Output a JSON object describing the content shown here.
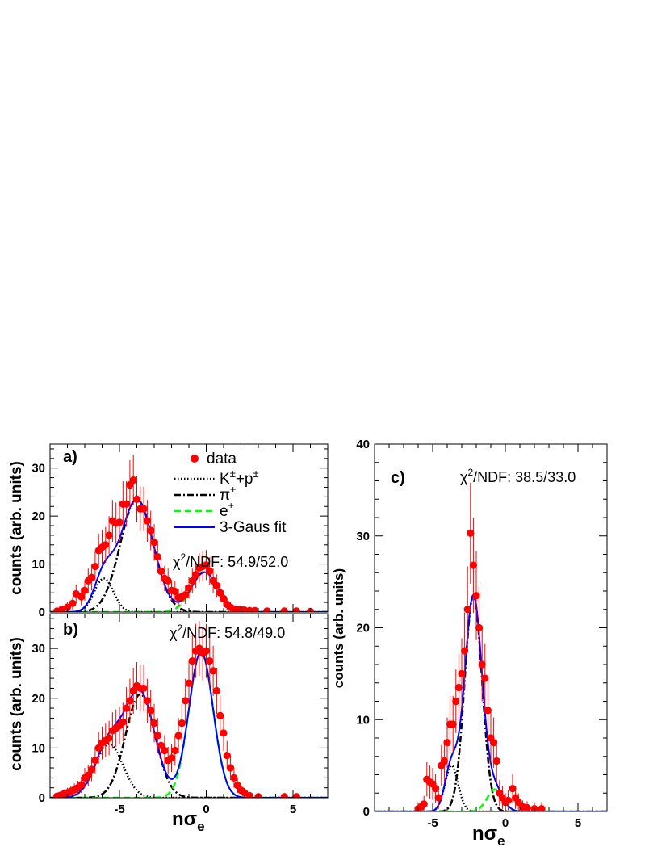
{
  "colors": {
    "data": "#ff0000",
    "fit": "#0000ff",
    "kp": "#000000",
    "pi": "#000000",
    "e": "#00ff00"
  },
  "legend": {
    "data": "data",
    "kp_base1": "K",
    "kp_sup1": "±",
    "kp_mid": "+p",
    "kp_sup2": "±",
    "pi_base": "π",
    "pi_sup": "±",
    "e_base": "e",
    "e_sup": "±",
    "fit": "3-Gaus fit"
  },
  "xlabel": {
    "n": "n",
    "sigma": "σ",
    "sub": "e"
  },
  "chart_data": [
    {
      "id": "a",
      "type": "scatter",
      "panel_label": "a)",
      "ylabel": "counts (arb. units)",
      "chi2": {
        "chi": "χ",
        "sup": "2",
        "text": "/NDF: 54.9/52.0"
      },
      "xlim": [
        -9,
        7
      ],
      "ylim": [
        0,
        35
      ],
      "xticks": [
        -5,
        0,
        5
      ],
      "yticks": [
        0,
        10,
        20,
        30
      ],
      "xtick_labels": [],
      "ytick_labels": [
        "0",
        "10",
        "20",
        "30"
      ],
      "components": [
        {
          "name": "kp",
          "A": 7.0,
          "mu": -5.9,
          "sigma": 0.55
        },
        {
          "name": "pi",
          "A": 23.5,
          "mu": -4.0,
          "sigma": 0.95
        },
        {
          "name": "e",
          "A": 8.3,
          "mu": -0.1,
          "sigma": 0.75
        }
      ],
      "points": [
        [
          -8.6,
          0.2
        ],
        [
          -8.3,
          0.6
        ],
        [
          -8.0,
          1.0
        ],
        [
          -7.7,
          1.8
        ],
        [
          -7.5,
          3.8
        ],
        [
          -7.2,
          3.2
        ],
        [
          -7.0,
          4.5
        ],
        [
          -6.8,
          6.5
        ],
        [
          -6.6,
          7.2
        ],
        [
          -6.4,
          9.5
        ],
        [
          -6.2,
          12.8
        ],
        [
          -6.0,
          13.5
        ],
        [
          -5.8,
          14.0
        ],
        [
          -5.6,
          16.0
        ],
        [
          -5.4,
          19.0
        ],
        [
          -5.2,
          18.5
        ],
        [
          -5.0,
          18.7
        ],
        [
          -4.8,
          22.5
        ],
        [
          -4.6,
          22.5
        ],
        [
          -4.4,
          26.5
        ],
        [
          -4.2,
          27.5
        ],
        [
          -4.0,
          23.5
        ],
        [
          -3.8,
          21.5
        ],
        [
          -3.6,
          21.5
        ],
        [
          -3.4,
          19.0
        ],
        [
          -3.2,
          17.0
        ],
        [
          -3.0,
          14.5
        ],
        [
          -2.8,
          11.5
        ],
        [
          -2.6,
          8.5
        ],
        [
          -2.4,
          7.0
        ],
        [
          -2.2,
          6.5
        ],
        [
          -2.0,
          4.5
        ],
        [
          -1.8,
          4.3
        ],
        [
          -1.6,
          3.0
        ],
        [
          -1.4,
          3.2
        ],
        [
          -1.2,
          3.6
        ],
        [
          -1.0,
          5.0
        ],
        [
          -0.8,
          6.5
        ],
        [
          -0.6,
          7.8
        ],
        [
          -0.4,
          9.2
        ],
        [
          -0.2,
          9.5
        ],
        [
          0.0,
          9.8
        ],
        [
          0.2,
          8.5
        ],
        [
          0.4,
          6.5
        ],
        [
          0.6,
          5.5
        ],
        [
          0.8,
          4.0
        ],
        [
          1.0,
          2.8
        ],
        [
          1.2,
          1.6
        ],
        [
          1.4,
          1.0
        ],
        [
          1.6,
          0.6
        ],
        [
          1.8,
          0.5
        ],
        [
          2.0,
          0.5
        ],
        [
          2.2,
          0.4
        ],
        [
          2.5,
          0.3
        ],
        [
          2.8,
          0.3
        ],
        [
          3.5,
          0.2
        ],
        [
          4.5,
          0.2
        ],
        [
          5.2,
          0.2
        ],
        [
          6.0,
          0.1
        ]
      ]
    },
    {
      "id": "b",
      "type": "scatter",
      "panel_label": "b)",
      "ylabel": "counts (arb. units)",
      "chi2": {
        "chi": "χ",
        "sup": "2",
        "text": "/NDF: 54.8/49.0"
      },
      "xlim": [
        -9,
        7
      ],
      "ylim": [
        0,
        37
      ],
      "xticks": [
        -5,
        0,
        5
      ],
      "yticks": [
        0,
        10,
        20,
        30
      ],
      "xtick_labels": [
        "-5",
        "0",
        "5"
      ],
      "ytick_labels": [
        "0",
        "10",
        "20",
        "30"
      ],
      "components": [
        {
          "name": "kp",
          "A": 10.8,
          "mu": -5.6,
          "sigma": 0.8
        },
        {
          "name": "pi",
          "A": 20.8,
          "mu": -3.8,
          "sigma": 0.85
        },
        {
          "name": "e",
          "A": 29.3,
          "mu": -0.3,
          "sigma": 0.7
        }
      ],
      "points": [
        [
          -8.6,
          0.3
        ],
        [
          -8.4,
          0.5
        ],
        [
          -8.2,
          0.8
        ],
        [
          -8.0,
          1.0
        ],
        [
          -7.8,
          1.3
        ],
        [
          -7.6,
          1.6
        ],
        [
          -7.4,
          2.0
        ],
        [
          -7.2,
          2.6
        ],
        [
          -7.0,
          4.0
        ],
        [
          -6.8,
          4.5
        ],
        [
          -6.6,
          5.7
        ],
        [
          -6.4,
          7.5
        ],
        [
          -6.2,
          10.0
        ],
        [
          -6.0,
          11.0
        ],
        [
          -5.8,
          11.5
        ],
        [
          -5.6,
          12.0
        ],
        [
          -5.4,
          13.5
        ],
        [
          -5.2,
          14.0
        ],
        [
          -5.0,
          14.5
        ],
        [
          -4.8,
          15.2
        ],
        [
          -4.6,
          18.0
        ],
        [
          -4.4,
          19.5
        ],
        [
          -4.2,
          21.5
        ],
        [
          -4.0,
          22.5
        ],
        [
          -3.8,
          22.0
        ],
        [
          -3.6,
          22.0
        ],
        [
          -3.4,
          19.5
        ],
        [
          -3.2,
          17.5
        ],
        [
          -3.0,
          15.0
        ],
        [
          -2.8,
          12.5
        ],
        [
          -2.6,
          10.5
        ],
        [
          -2.4,
          9.5
        ],
        [
          -2.2,
          7.5
        ],
        [
          -2.0,
          8.0
        ],
        [
          -1.8,
          9.5
        ],
        [
          -1.6,
          12.5
        ],
        [
          -1.4,
          15.0
        ],
        [
          -1.2,
          19.5
        ],
        [
          -1.0,
          23.0
        ],
        [
          -0.8,
          27.5
        ],
        [
          -0.6,
          29.5
        ],
        [
          -0.4,
          30.0
        ],
        [
          -0.2,
          29.0
        ],
        [
          0.0,
          29.5
        ],
        [
          0.2,
          27.5
        ],
        [
          0.4,
          25.5
        ],
        [
          0.6,
          21.5
        ],
        [
          0.8,
          16.5
        ],
        [
          1.0,
          13.0
        ],
        [
          1.2,
          8.5
        ],
        [
          1.4,
          6.0
        ],
        [
          1.6,
          4.0
        ],
        [
          1.8,
          2.5
        ],
        [
          2.0,
          1.5
        ],
        [
          2.2,
          1.0
        ],
        [
          2.5,
          0.4
        ],
        [
          3.0,
          0.2
        ],
        [
          4.5,
          0.2
        ],
        [
          5.2,
          0.2
        ]
      ]
    },
    {
      "id": "c",
      "type": "scatter",
      "panel_label": "c)",
      "ylabel": "counts (arb. units)",
      "chi2": {
        "chi": "χ",
        "sup": "2",
        "text": "/NDF: 38.5/33.0"
      },
      "xlim": [
        -9,
        7
      ],
      "ylim": [
        0,
        40
      ],
      "xticks": [
        -5,
        0,
        5
      ],
      "yticks": [
        0,
        10,
        20,
        30,
        40
      ],
      "xtick_labels": [
        "-5",
        "0",
        "5"
      ],
      "ytick_labels": [
        "0",
        "10",
        "20",
        "30",
        "40"
      ],
      "components": [
        {
          "name": "kp",
          "A": 5.0,
          "mu": -3.7,
          "sigma": 0.45
        },
        {
          "name": "pi",
          "A": 23.5,
          "mu": -2.2,
          "sigma": 0.6
        },
        {
          "name": "e",
          "A": 2.4,
          "mu": -0.7,
          "sigma": 0.55
        }
      ],
      "points": [
        [
          -6.0,
          0.3
        ],
        [
          -5.8,
          0.5
        ],
        [
          -5.6,
          0.8
        ],
        [
          -5.4,
          3.5
        ],
        [
          -5.2,
          3.2
        ],
        [
          -5.0,
          3.0
        ],
        [
          -4.8,
          2.5
        ],
        [
          -4.6,
          1.5
        ],
        [
          -4.4,
          5.0
        ],
        [
          -4.2,
          5.5
        ],
        [
          -4.0,
          7.5
        ],
        [
          -3.8,
          9.5
        ],
        [
          -3.6,
          9.5
        ],
        [
          -3.4,
          12.0
        ],
        [
          -3.2,
          13.5
        ],
        [
          -3.0,
          15.0
        ],
        [
          -2.8,
          17.5
        ],
        [
          -2.6,
          22.0
        ],
        [
          -2.4,
          30.3
        ],
        [
          -2.2,
          26.8
        ],
        [
          -2.0,
          23.5
        ],
        [
          -1.8,
          20.0
        ],
        [
          -1.6,
          16.0
        ],
        [
          -1.4,
          14.5
        ],
        [
          -1.2,
          11.0
        ],
        [
          -1.0,
          8.0
        ],
        [
          -0.8,
          7.5
        ],
        [
          -0.6,
          5.5
        ],
        [
          -0.4,
          2.0
        ],
        [
          -0.2,
          1.5
        ],
        [
          0.0,
          1.0
        ],
        [
          0.2,
          1.2
        ],
        [
          0.5,
          2.5
        ],
        [
          0.7,
          1.5
        ],
        [
          0.9,
          1.0
        ],
        [
          1.2,
          0.5
        ],
        [
          1.5,
          0.4
        ],
        [
          2.0,
          0.3
        ],
        [
          2.5,
          0.3
        ]
      ]
    }
  ]
}
